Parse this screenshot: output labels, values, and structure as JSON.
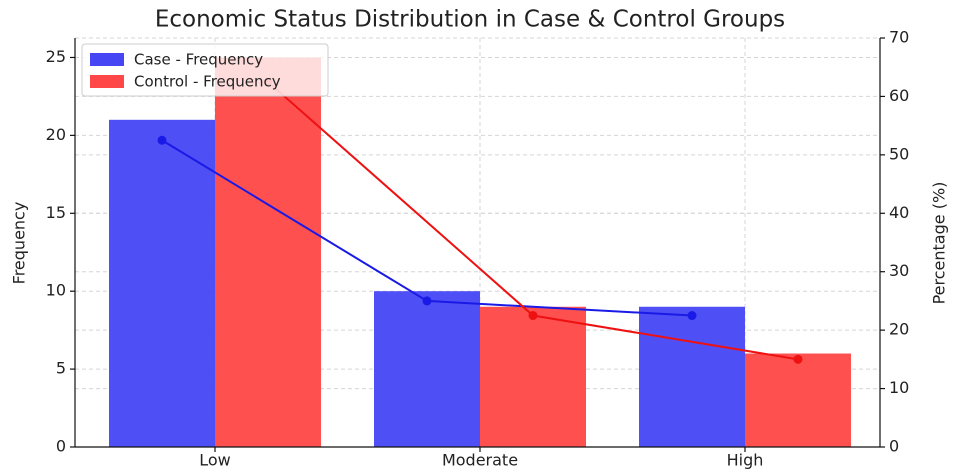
{
  "chart_data": {
    "type": "bar",
    "title": "Economic Status Distribution in Case & Control Groups",
    "ylabel": "Frequency",
    "y2label": "Percentage (%)",
    "categories": [
      "Low",
      "Moderate",
      "High"
    ],
    "series": [
      {
        "name": "Case - Frequency",
        "color": "#4646f5",
        "values": [
          21,
          10,
          9
        ]
      },
      {
        "name": "Control - Frequency",
        "color": "#ff4747",
        "values": [
          25,
          9,
          6
        ]
      },
      {
        "type": "line",
        "axis": "y2",
        "color": "#1a1ae6",
        "values": [
          52.5,
          25,
          22.5
        ]
      },
      {
        "type": "line",
        "axis": "y2",
        "color": "#ee1111",
        "values": [
          62.5,
          22.5,
          15
        ]
      }
    ],
    "ylim": [
      0,
      26.25
    ],
    "yticks": [
      0,
      5,
      10,
      15,
      20,
      25
    ],
    "y2lim": [
      0,
      70
    ],
    "y2ticks": [
      0,
      10,
      20,
      30,
      40,
      50,
      60,
      70
    ],
    "grid": true,
    "legend": "upper left"
  }
}
